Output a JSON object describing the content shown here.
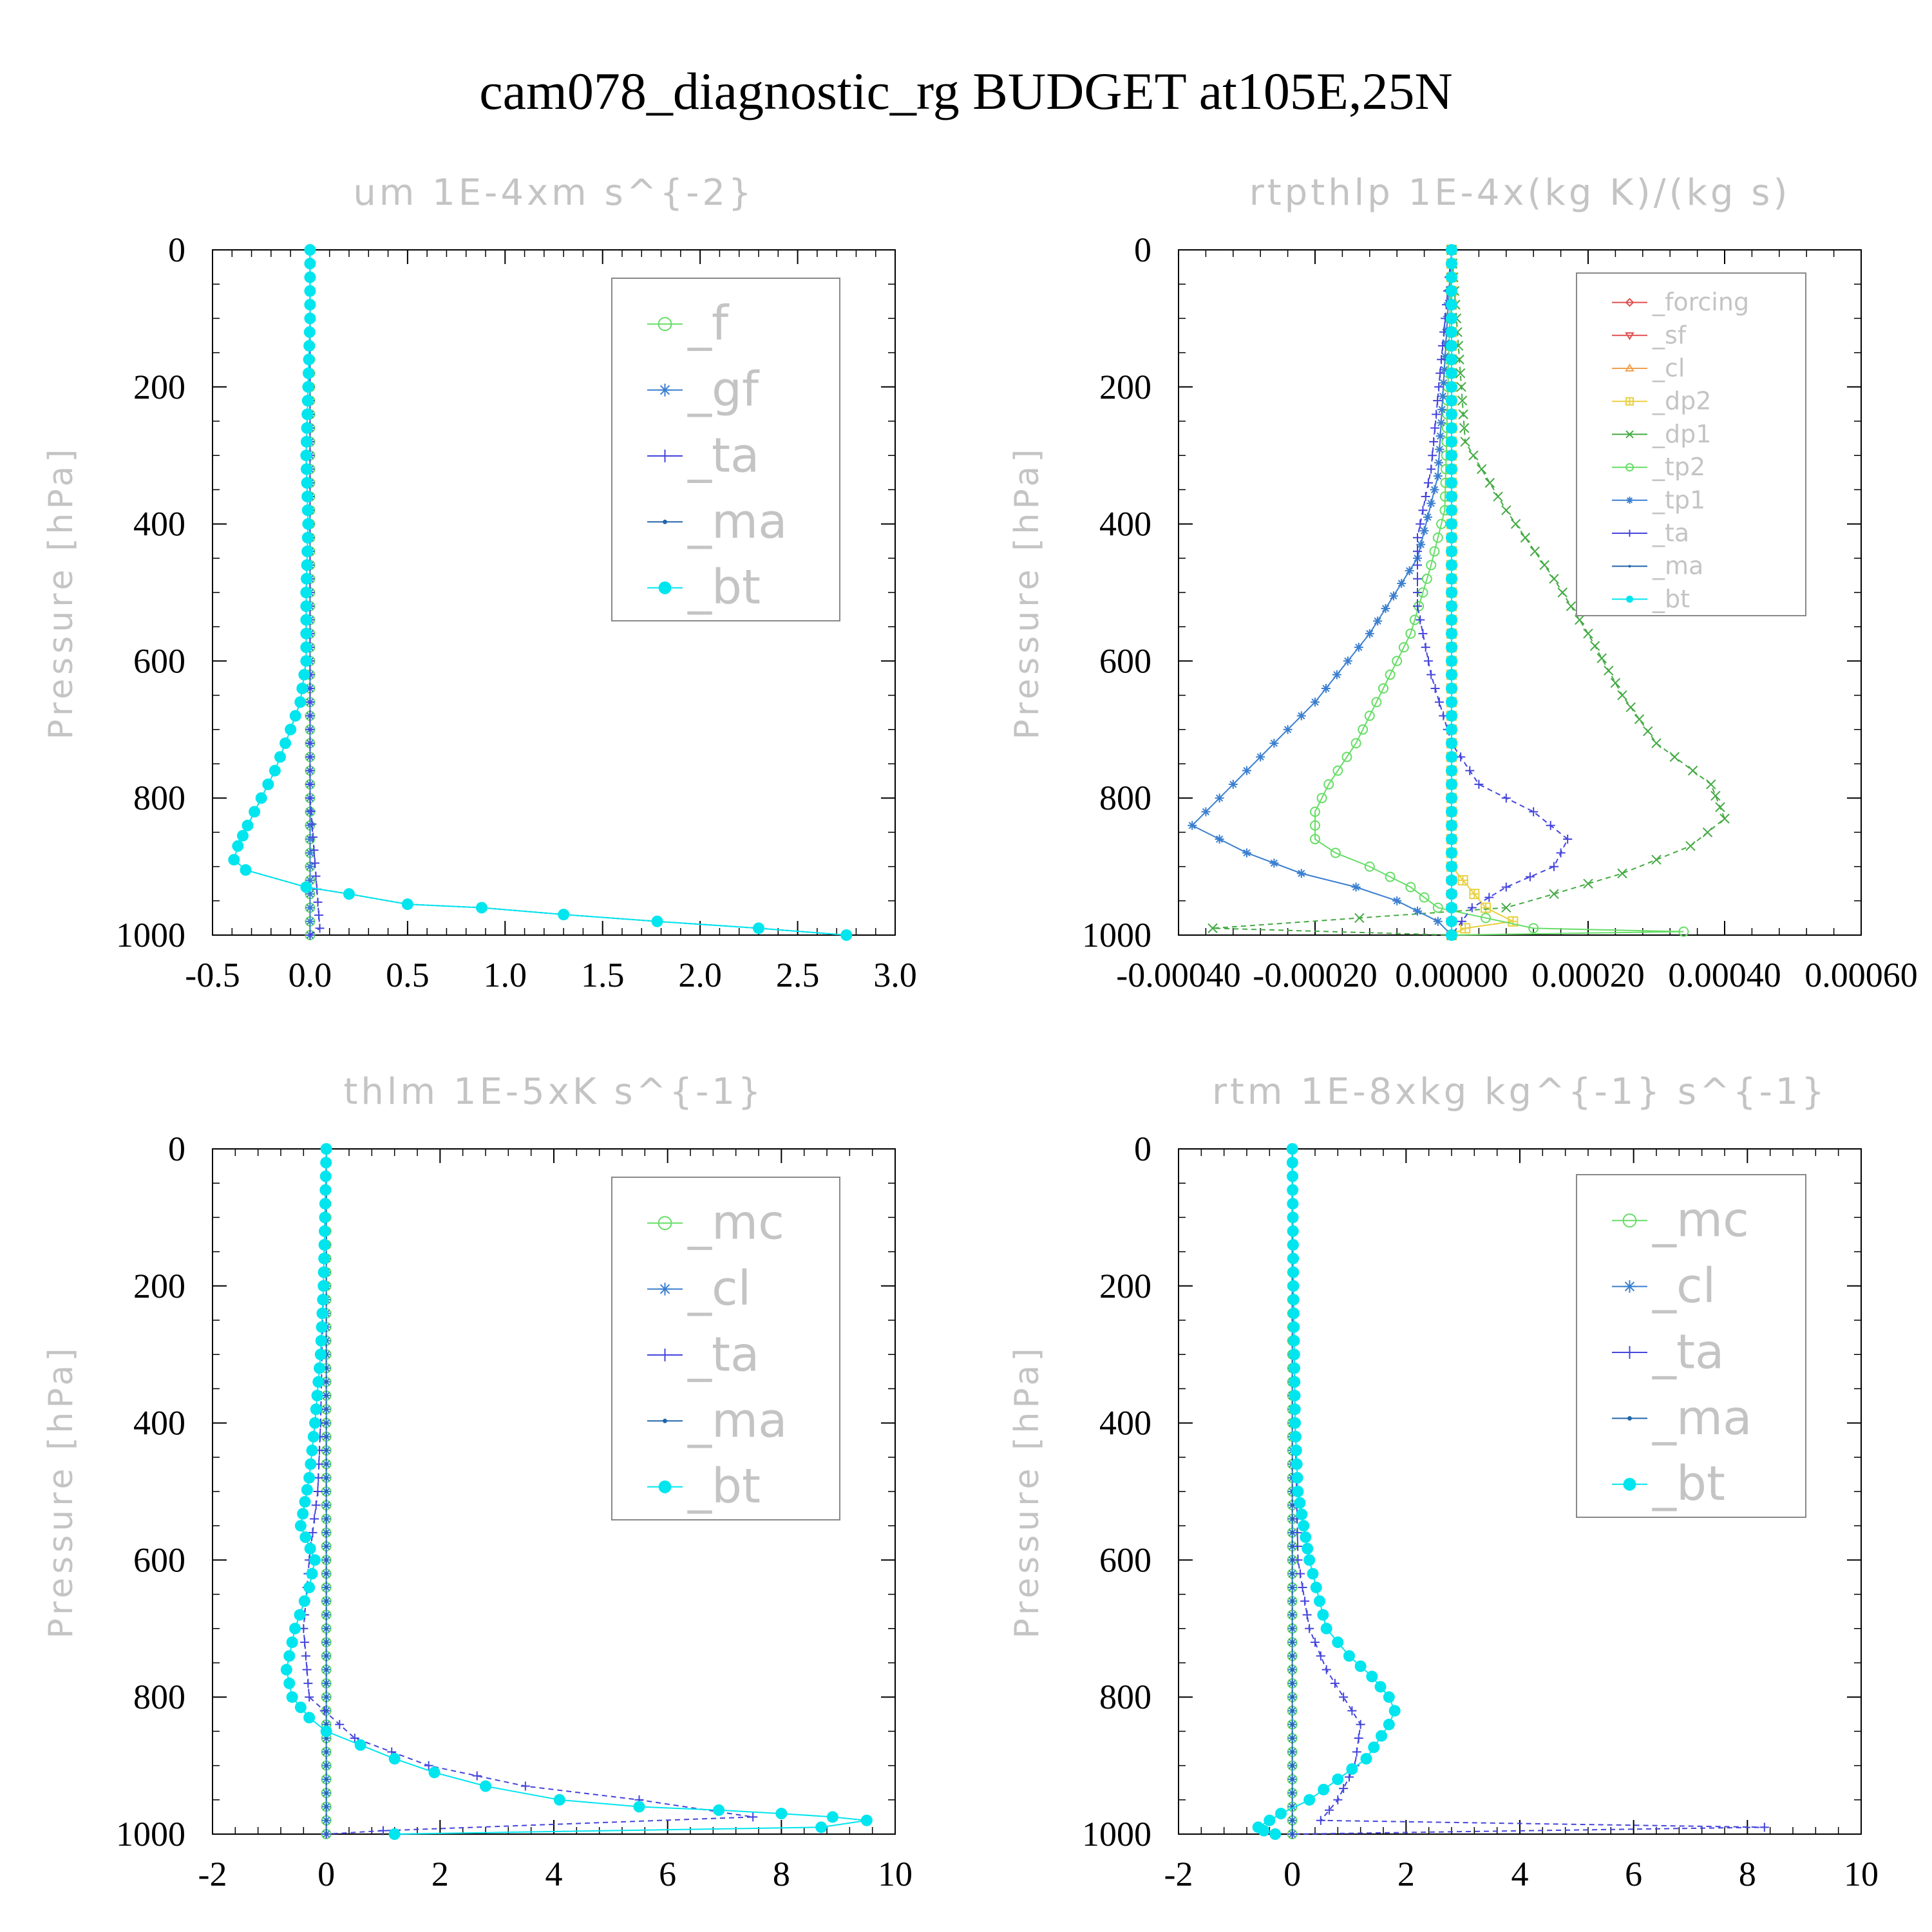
{
  "title": "cam078_diagnostic_rg  BUDGET at105E,25N",
  "chart_data": [
    {
      "type": "line",
      "title": "um  1E-4xm s^{-2}",
      "ylabel": "Pressure [hPa]",
      "xlim": [
        -0.5,
        3.0
      ],
      "ylim": [
        1000,
        0
      ],
      "xticks": [
        "-0.5",
        "0.0",
        "0.5",
        "1.0",
        "1.5",
        "2.0",
        "2.5",
        "3.0"
      ],
      "yticks": [
        "0",
        "200",
        "400",
        "600",
        "800",
        "1000"
      ],
      "legend": "top-right",
      "series": [
        {
          "name": "_f",
          "color": "#66dd66",
          "marker": "circle-open",
          "x": [
            0,
            0,
            0,
            0
          ],
          "y": [
            0,
            400,
            800,
            1000
          ]
        },
        {
          "name": "_gf",
          "color": "#3a7fd0",
          "marker": "star",
          "x": [
            0,
            0,
            0,
            0
          ],
          "y": [
            0,
            400,
            800,
            1000
          ]
        },
        {
          "name": "_ta",
          "color": "#4444dd",
          "marker": "plus",
          "x": [
            0,
            0,
            0,
            0.05,
            0
          ],
          "y": [
            0,
            400,
            800,
            990,
            1000
          ]
        },
        {
          "name": "_ma",
          "color": "#2266aa",
          "marker": "dot",
          "x": [
            0,
            0,
            -0.01,
            -0.02,
            -0.01,
            -0.02,
            -0.02,
            -0.05,
            -0.1,
            -0.18,
            -0.25,
            -0.32,
            -0.37,
            -0.39,
            -0.33,
            -0.02,
            0.2,
            0.5,
            0.88,
            1.3,
            1.78,
            2.3,
            2.75
          ],
          "y": [
            0,
            100,
            200,
            300,
            400,
            500,
            600,
            660,
            700,
            760,
            800,
            840,
            870,
            890,
            905,
            930,
            940,
            955,
            960,
            970,
            980,
            990,
            1000
          ]
        },
        {
          "name": "_bt",
          "color": "#00e5ee",
          "marker": "filled-circle",
          "x": [
            0,
            0,
            -0.01,
            -0.02,
            -0.01,
            -0.02,
            -0.02,
            -0.05,
            -0.1,
            -0.18,
            -0.25,
            -0.32,
            -0.37,
            -0.39,
            -0.33,
            -0.02,
            0.2,
            0.5,
            0.88,
            1.3,
            1.78,
            2.3,
            2.75
          ],
          "y": [
            0,
            100,
            200,
            300,
            400,
            500,
            600,
            660,
            700,
            760,
            800,
            840,
            870,
            890,
            905,
            930,
            940,
            955,
            960,
            970,
            980,
            990,
            1000
          ]
        }
      ]
    },
    {
      "type": "line",
      "title": "rtpthlp  1E-4x(kg K)/(kg s)",
      "ylabel": "Pressure [hPa]",
      "xlim": [
        -0.0004,
        0.0006
      ],
      "ylim": [
        1000,
        0
      ],
      "xticks": [
        "-0.00040",
        "-0.00020",
        "0.00000",
        "0.00020",
        "0.00040",
        "0.00060"
      ],
      "yticks": [
        "0",
        "200",
        "400",
        "600",
        "800",
        "1000"
      ],
      "legend": "top-right",
      "series": [
        {
          "name": "_forcing",
          "color": "#e05050",
          "marker": "diamond",
          "x": [
            0,
            0
          ],
          "y": [
            0,
            1000
          ]
        },
        {
          "name": "_sf",
          "color": "#e05050",
          "marker": "triangle-down",
          "x": [
            0,
            0
          ],
          "y": [
            0,
            1000
          ]
        },
        {
          "name": "_cl",
          "color": "#f0a050",
          "marker": "triangle-up",
          "x": [
            0,
            0
          ],
          "y": [
            0,
            1000
          ]
        },
        {
          "name": "_dp2",
          "color": "#e8d040",
          "marker": "square-plus",
          "x": [
            0,
            0,
            5e-05,
            9e-05,
            2e-05,
            0
          ],
          "y": [
            0,
            900,
            960,
            980,
            990,
            1000
          ]
        },
        {
          "name": "_dp1",
          "color": "#44aa44",
          "marker": "x",
          "x": [
            0,
            2e-05,
            8e-05,
            0.00015,
            0.0002,
            0.00025,
            0.0003,
            0.00038,
            0.0004,
            0.00035,
            0.00025,
            0.00015,
            8e-05,
            -0.00035,
            0
          ],
          "y": [
            0,
            280,
            380,
            480,
            560,
            650,
            720,
            780,
            830,
            870,
            910,
            940,
            960,
            990,
            1000
          ]
        },
        {
          "name": "_tp2",
          "color": "#66dd66",
          "marker": "circle-open",
          "x": [
            0,
            -1e-05,
            -3e-05,
            -6e-05,
            -0.0001,
            -0.00014,
            -0.00018,
            -0.0002,
            -0.0002,
            -0.00017,
            -0.00012,
            -6e-05,
            -2e-05,
            0.00012,
            0.00034,
            0
          ],
          "y": [
            0,
            380,
            460,
            560,
            640,
            720,
            780,
            820,
            860,
            880,
            900,
            930,
            960,
            990,
            995,
            1000
          ]
        },
        {
          "name": "_tp1",
          "color": "#3a7fd0",
          "marker": "star",
          "x": [
            0,
            -2e-05,
            -5e-05,
            -0.00012,
            -0.0002,
            -0.0003,
            -0.00038,
            -0.0003,
            -0.00022,
            -0.00014,
            -8e-05,
            -2e-05,
            0
          ],
          "y": [
            0,
            330,
            450,
            560,
            660,
            760,
            840,
            880,
            910,
            930,
            950,
            980,
            1000
          ]
        },
        {
          "name": "_ta",
          "color": "#4444dd",
          "marker": "plus",
          "x": [
            0,
            -3e-05,
            -5e-05,
            -5e-05,
            -3e-05,
            0,
            4e-05,
            0.00012,
            0.00017,
            0.00015,
            8e-05,
            3e-05,
            0
          ],
          "y": [
            0,
            320,
            420,
            520,
            620,
            720,
            780,
            820,
            860,
            900,
            930,
            960,
            1000
          ]
        },
        {
          "name": "_ma",
          "color": "#2266aa",
          "marker": "dot",
          "x": [
            0,
            0
          ],
          "y": [
            0,
            1000
          ]
        },
        {
          "name": "_bt",
          "color": "#00e5ee",
          "marker": "filled-circle",
          "x": [
            0,
            0
          ],
          "y": [
            0,
            1000
          ]
        }
      ]
    },
    {
      "type": "line",
      "title": "thlm  1E-5xK s^{-1}",
      "ylabel": "Pressure [hPa]",
      "xlim": [
        -2,
        10
      ],
      "ylim": [
        1000,
        0
      ],
      "xticks": [
        "-2",
        "0",
        "2",
        "4",
        "6",
        "8",
        "10"
      ],
      "yticks": [
        "0",
        "200",
        "400",
        "600",
        "800",
        "1000"
      ],
      "legend": "top-right",
      "series": [
        {
          "name": "_mc",
          "color": "#66dd66",
          "marker": "circle-open",
          "x": [
            0,
            0,
            0,
            0
          ],
          "y": [
            0,
            400,
            800,
            1000
          ]
        },
        {
          "name": "_cl",
          "color": "#3a7fd0",
          "marker": "star",
          "x": [
            0,
            0,
            0,
            0
          ],
          "y": [
            0,
            400,
            800,
            1000
          ]
        },
        {
          "name": "_ta",
          "color": "#4444dd",
          "marker": "plus",
          "x": [
            0,
            -0.05,
            -0.1,
            -0.15,
            -0.3,
            -0.4,
            -0.3,
            0.5,
            1.8,
            3.5,
            5.5,
            7.5,
            1.0,
            0
          ],
          "y": [
            0,
            200,
            400,
            500,
            600,
            700,
            800,
            860,
            900,
            930,
            950,
            975,
            995,
            1000
          ]
        },
        {
          "name": "_ma",
          "color": "#2266aa",
          "marker": "dot",
          "x": [
            0,
            0,
            0,
            0
          ],
          "y": [
            0,
            400,
            800,
            1000
          ]
        },
        {
          "name": "_bt",
          "color": "#00e5ee",
          "marker": "filled-circle",
          "x": [
            0,
            -0.05,
            -0.1,
            -0.2,
            -0.3,
            -0.45,
            -0.2,
            -0.3,
            -0.55,
            -0.7,
            -0.6,
            -0.3,
            0,
            0.6,
            1.2,
            1.9,
            2.8,
            4.1,
            5.5,
            6.9,
            8.0,
            8.9,
            9.5,
            8.7,
            1.2
          ],
          "y": [
            0,
            200,
            300,
            400,
            480,
            550,
            600,
            640,
            700,
            760,
            800,
            830,
            850,
            870,
            890,
            910,
            930,
            950,
            960,
            965,
            970,
            975,
            980,
            990,
            1000
          ]
        }
      ]
    },
    {
      "type": "line",
      "title": "rtm  1E-8xkg kg^{-1} s^{-1}",
      "ylabel": "Pressure [hPa]",
      "xlim": [
        -2,
        10
      ],
      "ylim": [
        1000,
        0
      ],
      "xticks": [
        "-2",
        "0",
        "2",
        "4",
        "6",
        "8",
        "10"
      ],
      "yticks": [
        "0",
        "200",
        "400",
        "600",
        "800",
        "1000"
      ],
      "legend": "top-right",
      "series": [
        {
          "name": "_mc",
          "color": "#66dd66",
          "marker": "circle-open",
          "x": [
            0,
            0,
            0,
            0
          ],
          "y": [
            0,
            400,
            800,
            1000
          ]
        },
        {
          "name": "_cl",
          "color": "#3a7fd0",
          "marker": "star",
          "x": [
            0,
            0,
            0,
            0
          ],
          "y": [
            0,
            400,
            800,
            1000
          ]
        },
        {
          "name": "_ta",
          "color": "#4444dd",
          "marker": "plus",
          "x": [
            0,
            0.02,
            0.05,
            0.1,
            0.3,
            0.6,
            0.9,
            1.2,
            1.1,
            0.8,
            0.5,
            8.3,
            0
          ],
          "y": [
            0,
            200,
            400,
            600,
            700,
            760,
            800,
            840,
            900,
            950,
            980,
            990,
            1000
          ]
        },
        {
          "name": "_ma",
          "color": "#2266aa",
          "marker": "dot",
          "x": [
            0,
            0,
            0,
            0
          ],
          "y": [
            0,
            400,
            800,
            1000
          ]
        },
        {
          "name": "_bt",
          "color": "#00e5ee",
          "marker": "filled-circle",
          "x": [
            0,
            0.02,
            0.05,
            0.1,
            0.2,
            0.3,
            0.6,
            1.0,
            1.4,
            1.7,
            1.8,
            1.7,
            1.3,
            0.8,
            0.3,
            -0.2,
            -0.4,
            -0.6,
            -0.5,
            -0.3
          ],
          "y": [
            0,
            200,
            400,
            500,
            550,
            600,
            700,
            740,
            770,
            800,
            820,
            840,
            890,
            920,
            950,
            970,
            980,
            990,
            995,
            1000
          ]
        }
      ]
    }
  ]
}
